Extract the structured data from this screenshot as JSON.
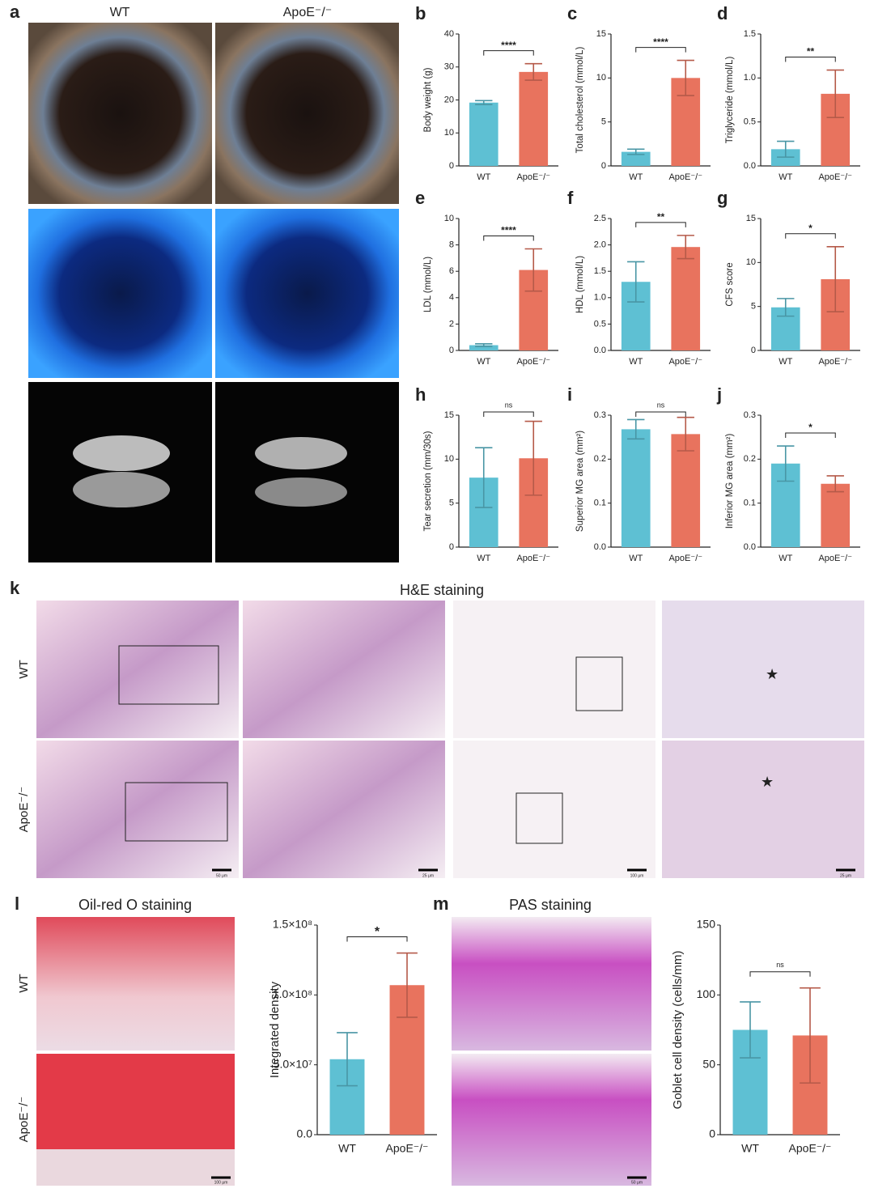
{
  "figure": {
    "panel_a": {
      "label": "a",
      "columns": [
        "WT",
        "ApoE⁻/⁻"
      ]
    },
    "panel_k": {
      "label": "k",
      "title": "H&E staining",
      "rows": [
        "WT",
        "ApoE⁻/⁻"
      ],
      "scale_bars": [
        "50 μm",
        "25 μm",
        "100 μm",
        "25 μm"
      ]
    },
    "panel_l": {
      "label": "l",
      "title": "Oil-red O staining",
      "rows": [
        "WT",
        "ApoE⁻/⁻"
      ],
      "scale_bar": "100 μm"
    },
    "panel_m": {
      "label": "m",
      "title": "PAS staining",
      "scale_bar": "50 μm"
    }
  },
  "chart_data": [
    {
      "type": "bar",
      "panel": "b",
      "ylabel": "Body weight (g)",
      "categories": [
        "WT",
        "ApoE⁻/⁻"
      ],
      "values": [
        19.2,
        28.5
      ],
      "errors": [
        0.6,
        2.5
      ],
      "colors": [
        "#5ec0d3",
        "#e8735e"
      ],
      "significance": "****",
      "ylim": [
        0,
        40
      ],
      "yticks": [
        0,
        10,
        20,
        30,
        40
      ]
    },
    {
      "type": "bar",
      "panel": "c",
      "ylabel": "Total cholesterol (mmol/L)",
      "categories": [
        "WT",
        "ApoE⁻/⁻"
      ],
      "values": [
        1.6,
        10
      ],
      "errors": [
        0.3,
        2
      ],
      "colors": [
        "#5ec0d3",
        "#e8735e"
      ],
      "significance": "****",
      "ylim": [
        0,
        15
      ],
      "yticks": [
        0,
        5,
        10,
        15
      ]
    },
    {
      "type": "bar",
      "panel": "d",
      "ylabel": "Triglyceride (mmol/L)",
      "categories": [
        "WT",
        "ApoE⁻/⁻"
      ],
      "values": [
        0.19,
        0.82
      ],
      "errors": [
        0.09,
        0.27
      ],
      "colors": [
        "#5ec0d3",
        "#e8735e"
      ],
      "significance": "**",
      "ylim": [
        0,
        1.5
      ],
      "yticks": [
        {
          "value": 0,
          "label": "0.0"
        },
        0.5,
        {
          "value": 1,
          "label": "1.0"
        },
        1.5
      ]
    },
    {
      "type": "bar",
      "panel": "e",
      "ylabel": "LDL (mmol/L)",
      "categories": [
        "WT",
        "ApoE⁻/⁻"
      ],
      "values": [
        0.4,
        6.1
      ],
      "errors": [
        0.1,
        1.6
      ],
      "colors": [
        "#5ec0d3",
        "#e8735e"
      ],
      "significance": "****",
      "ylim": [
        0,
        10
      ],
      "yticks": [
        0,
        2,
        4,
        6,
        8,
        10
      ]
    },
    {
      "type": "bar",
      "panel": "f",
      "ylabel": "HDL (mmol/L)",
      "categories": [
        "WT",
        "ApoE⁻/⁻"
      ],
      "values": [
        1.3,
        1.96
      ],
      "errors": [
        0.38,
        0.22
      ],
      "colors": [
        "#5ec0d3",
        "#e8735e"
      ],
      "significance": "**",
      "ylim": [
        0,
        2.5
      ],
      "yticks": [
        {
          "value": 0,
          "label": "0.0"
        },
        0.5,
        {
          "value": 1,
          "label": "1.0"
        },
        1.5,
        {
          "value": 2,
          "label": "2.0"
        },
        2.5
      ]
    },
    {
      "type": "bar",
      "panel": "g",
      "ylabel": "CFS score",
      "categories": [
        "WT",
        "ApoE⁻/⁻"
      ],
      "values": [
        4.9,
        8.1
      ],
      "errors": [
        1.0,
        3.7
      ],
      "colors": [
        "#5ec0d3",
        "#e8735e"
      ],
      "significance": "*",
      "ylim": [
        0,
        15
      ],
      "yticks": [
        0,
        5,
        10,
        15
      ]
    },
    {
      "type": "bar",
      "panel": "h",
      "ylabel": "Tear secretion (mm/30s)",
      "categories": [
        "WT",
        "ApoE⁻/⁻"
      ],
      "values": [
        7.9,
        10.1
      ],
      "errors": [
        3.4,
        4.2
      ],
      "colors": [
        "#5ec0d3",
        "#e8735e"
      ],
      "significance": "ns",
      "ylim": [
        0,
        15
      ],
      "yticks": [
        0,
        5,
        10,
        15
      ]
    },
    {
      "type": "bar",
      "panel": "i",
      "ylabel": "Superior MG area (mm²)",
      "categories": [
        "WT",
        "ApoE⁻/⁻"
      ],
      "values": [
        0.268,
        0.257
      ],
      "errors": [
        0.022,
        0.038
      ],
      "colors": [
        "#5ec0d3",
        "#e8735e"
      ],
      "significance": "ns",
      "ylim": [
        0,
        0.3
      ],
      "yticks": [
        {
          "value": 0,
          "label": "0.0"
        },
        0.1,
        0.2,
        0.3
      ]
    },
    {
      "type": "bar",
      "panel": "j",
      "ylabel": "Inferior MG area (mm²)",
      "categories": [
        "WT",
        "ApoE⁻/⁻"
      ],
      "values": [
        0.19,
        0.144
      ],
      "errors": [
        0.04,
        0.018
      ],
      "colors": [
        "#5ec0d3",
        "#e8735e"
      ],
      "significance": "*",
      "ylim": [
        0,
        0.3
      ],
      "yticks": [
        {
          "value": 0,
          "label": "0.0"
        },
        0.1,
        0.2,
        0.3
      ]
    },
    {
      "type": "bar",
      "ylabel": "Integrated density",
      "categories": [
        "WT",
        "ApoE⁻/⁻"
      ],
      "values": [
        54000000,
        107000000
      ],
      "errors": [
        19000000,
        23000000
      ],
      "colors": [
        "#5ec0d3",
        "#e8735e"
      ],
      "significance": "*",
      "ylim": [
        0,
        150000000
      ],
      "yticks": [
        {
          "value": 0,
          "label": "0.0"
        },
        {
          "value": 50000000,
          "label": "5.0×10⁷"
        },
        {
          "value": 100000000,
          "label": "1.0×10⁸"
        },
        {
          "value": 150000000,
          "label": "1.5×10⁸"
        }
      ]
    },
    {
      "type": "bar",
      "ylabel": "Goblet cell density (cells/mm)",
      "categories": [
        "WT",
        "ApoE⁻/⁻"
      ],
      "values": [
        75,
        71
      ],
      "errors": [
        20,
        34
      ],
      "colors": [
        "#5ec0d3",
        "#e8735e"
      ],
      "significance": "ns",
      "ylim": [
        0,
        150
      ],
      "yticks": [
        0,
        50,
        100,
        150
      ]
    }
  ]
}
